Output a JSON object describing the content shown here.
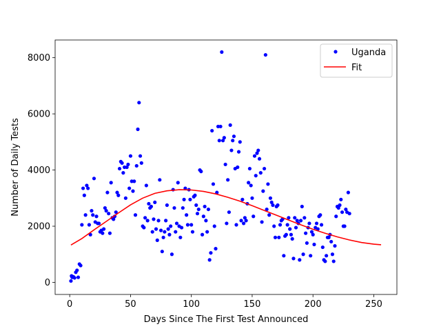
{
  "chart_data": {
    "type": "scatter",
    "title": "",
    "xlabel": "Days Since The First Test Announced",
    "ylabel": "Number of Daily Tests",
    "xlim": [
      -12,
      269
    ],
    "ylim": [
      -430,
      8630
    ],
    "x_ticks": [
      0,
      50,
      100,
      150,
      200,
      250
    ],
    "y_ticks": [
      0,
      2000,
      4000,
      6000,
      8000
    ],
    "x_tick_labels": [
      "0",
      "50",
      "100",
      "150",
      "200",
      "250"
    ],
    "y_tick_labels": [
      "0",
      "2000",
      "4000",
      "6000",
      "8000"
    ],
    "grid": false,
    "legend_position": "top-right",
    "series": [
      {
        "name": "Uganda",
        "kind": "scatter",
        "color": "#0000ff",
        "points": [
          [
            1,
            50
          ],
          [
            1.5,
            230
          ],
          [
            2,
            180
          ],
          [
            3,
            200
          ],
          [
            4,
            160
          ],
          [
            5,
            360
          ],
          [
            6,
            430
          ],
          [
            7,
            180
          ],
          [
            8,
            650
          ],
          [
            9,
            600
          ],
          [
            10,
            2050
          ],
          [
            11,
            3350
          ],
          [
            12,
            3100
          ],
          [
            13,
            2400
          ],
          [
            14,
            3450
          ],
          [
            15,
            3350
          ],
          [
            16,
            2050
          ],
          [
            17,
            1700
          ],
          [
            18,
            2550
          ],
          [
            19,
            2400
          ],
          [
            20,
            3700
          ],
          [
            21,
            2150
          ],
          [
            22,
            2350
          ],
          [
            23,
            2100
          ],
          [
            24,
            2100
          ],
          [
            25,
            1800
          ],
          [
            26,
            1850
          ],
          [
            27,
            1750
          ],
          [
            28,
            1900
          ],
          [
            29,
            2650
          ],
          [
            30,
            2550
          ],
          [
            31,
            3200
          ],
          [
            32,
            2450
          ],
          [
            33,
            1750
          ],
          [
            34,
            3550
          ],
          [
            35,
            2300
          ],
          [
            36,
            2250
          ],
          [
            37,
            2350
          ],
          [
            38,
            2500
          ],
          [
            39,
            3200
          ],
          [
            40,
            3100
          ],
          [
            41,
            4050
          ],
          [
            42,
            4300
          ],
          [
            43,
            4250
          ],
          [
            44,
            3900
          ],
          [
            45,
            4100
          ],
          [
            46,
            3000
          ],
          [
            47,
            4100
          ],
          [
            48,
            4200
          ],
          [
            49,
            3350
          ],
          [
            50,
            4500
          ],
          [
            51,
            3600
          ],
          [
            52,
            3250
          ],
          [
            53,
            3600
          ],
          [
            54,
            2400
          ],
          [
            55,
            4150
          ],
          [
            56,
            5450
          ],
          [
            57,
            6400
          ],
          [
            58,
            4500
          ],
          [
            59,
            4250
          ],
          [
            60,
            2000
          ],
          [
            61,
            1950
          ],
          [
            62,
            2300
          ],
          [
            63,
            3450
          ],
          [
            64,
            2200
          ],
          [
            65,
            2800
          ],
          [
            66,
            2650
          ],
          [
            67,
            2700
          ],
          [
            68,
            1800
          ],
          [
            69,
            2250
          ],
          [
            70,
            2850
          ],
          [
            71,
            1900
          ],
          [
            72,
            1500
          ],
          [
            73,
            2200
          ],
          [
            74,
            3650
          ],
          [
            75,
            1850
          ],
          [
            76,
            1100
          ],
          [
            77,
            1600
          ],
          [
            78,
            1800
          ],
          [
            79,
            2200
          ],
          [
            80,
            2750
          ],
          [
            81,
            1900
          ],
          [
            82,
            1700
          ],
          [
            83,
            2000
          ],
          [
            84,
            1000
          ],
          [
            85,
            3300
          ],
          [
            86,
            2650
          ],
          [
            87,
            1800
          ],
          [
            88,
            2100
          ],
          [
            89,
            3550
          ],
          [
            90,
            2000
          ],
          [
            91,
            1600
          ],
          [
            92,
            1950
          ],
          [
            93,
            2650
          ],
          [
            94,
            2950
          ],
          [
            95,
            3350
          ],
          [
            96,
            2400
          ],
          [
            97,
            2050
          ],
          [
            98,
            3300
          ],
          [
            99,
            2950
          ],
          [
            100,
            2050
          ],
          [
            101,
            1800
          ],
          [
            102,
            3050
          ],
          [
            103,
            3100
          ],
          [
            104,
            2750
          ],
          [
            105,
            2450
          ],
          [
            106,
            2600
          ],
          [
            107,
            4000
          ],
          [
            108,
            3950
          ],
          [
            109,
            1700
          ],
          [
            110,
            2350
          ],
          [
            111,
            2700
          ],
          [
            112,
            2200
          ],
          [
            113,
            1800
          ],
          [
            114,
            2600
          ],
          [
            115,
            800
          ],
          [
            116,
            1050
          ],
          [
            117,
            5400
          ],
          [
            118,
            3500
          ],
          [
            119,
            2000
          ],
          [
            120,
            1200
          ],
          [
            121,
            3200
          ],
          [
            122,
            5550
          ],
          [
            123,
            5050
          ],
          [
            124,
            5550
          ],
          [
            125,
            8200
          ],
          [
            126,
            5050
          ],
          [
            127,
            5150
          ],
          [
            128,
            4200
          ],
          [
            129,
            2100
          ],
          [
            130,
            3650
          ],
          [
            131,
            2500
          ],
          [
            132,
            5600
          ],
          [
            133,
            4700
          ],
          [
            134,
            5050
          ],
          [
            135,
            5200
          ],
          [
            136,
            4050
          ],
          [
            137,
            2050
          ],
          [
            138,
            4100
          ],
          [
            139,
            4650
          ],
          [
            140,
            5000
          ],
          [
            141,
            2200
          ],
          [
            142,
            2950
          ],
          [
            143,
            2100
          ],
          [
            144,
            2300
          ],
          [
            145,
            2200
          ],
          [
            146,
            2800
          ],
          [
            147,
            3550
          ],
          [
            148,
            4050
          ],
          [
            149,
            3450
          ],
          [
            150,
            3000
          ],
          [
            151,
            2350
          ],
          [
            152,
            4500
          ],
          [
            153,
            3800
          ],
          [
            154,
            4600
          ],
          [
            155,
            4700
          ],
          [
            156,
            4400
          ],
          [
            157,
            3900
          ],
          [
            158,
            2150
          ],
          [
            159,
            3250
          ],
          [
            160,
            4050
          ],
          [
            161,
            8100
          ],
          [
            162,
            2600
          ],
          [
            163,
            3500
          ],
          [
            164,
            2400
          ],
          [
            165,
            3000
          ],
          [
            166,
            2850
          ],
          [
            167,
            2750
          ],
          [
            168,
            2000
          ],
          [
            169,
            1600
          ],
          [
            170,
            2700
          ],
          [
            171,
            2750
          ],
          [
            172,
            1600
          ],
          [
            173,
            2050
          ],
          [
            174,
            2200
          ],
          [
            175,
            2250
          ],
          [
            176,
            950
          ],
          [
            177,
            1650
          ],
          [
            178,
            1700
          ],
          [
            179,
            2050
          ],
          [
            180,
            2300
          ],
          [
            181,
            1900
          ],
          [
            182,
            1700
          ],
          [
            183,
            1550
          ],
          [
            184,
            850
          ],
          [
            185,
            2300
          ],
          [
            186,
            1950
          ],
          [
            187,
            2200
          ],
          [
            188,
            2100
          ],
          [
            189,
            800
          ],
          [
            190,
            2200
          ],
          [
            191,
            2700
          ],
          [
            192,
            1000
          ],
          [
            193,
            2300
          ],
          [
            194,
            1750
          ],
          [
            195,
            1400
          ],
          [
            196,
            1950
          ],
          [
            197,
            2100
          ],
          [
            198,
            950
          ],
          [
            199,
            1800
          ],
          [
            200,
            1700
          ],
          [
            201,
            1350
          ],
          [
            202,
            1950
          ],
          [
            203,
            2100
          ],
          [
            204,
            1900
          ],
          [
            205,
            2350
          ],
          [
            206,
            2400
          ],
          [
            207,
            2050
          ],
          [
            208,
            1250
          ],
          [
            209,
            800
          ],
          [
            210,
            750
          ],
          [
            211,
            950
          ],
          [
            212,
            1600
          ],
          [
            213,
            1600
          ],
          [
            214,
            1700
          ],
          [
            215,
            1450
          ],
          [
            216,
            1000
          ],
          [
            217,
            750
          ],
          [
            218,
            1300
          ],
          [
            219,
            2350
          ],
          [
            220,
            2700
          ],
          [
            221,
            2650
          ],
          [
            222,
            2750
          ],
          [
            223,
            2950
          ],
          [
            224,
            2500
          ],
          [
            225,
            2000
          ],
          [
            226,
            2000
          ],
          [
            227,
            2600
          ],
          [
            228,
            2500
          ],
          [
            229,
            3200
          ],
          [
            230,
            2450
          ]
        ]
      },
      {
        "name": "Fit",
        "kind": "line",
        "color": "#ff0000",
        "points": [
          [
            1,
            1330
          ],
          [
            10,
            1560
          ],
          [
            20,
            1870
          ],
          [
            30,
            2170
          ],
          [
            40,
            2470
          ],
          [
            50,
            2760
          ],
          [
            60,
            3000
          ],
          [
            70,
            3170
          ],
          [
            80,
            3260
          ],
          [
            90,
            3300
          ],
          [
            100,
            3290
          ],
          [
            110,
            3240
          ],
          [
            120,
            3150
          ],
          [
            130,
            3030
          ],
          [
            140,
            2890
          ],
          [
            150,
            2730
          ],
          [
            160,
            2560
          ],
          [
            170,
            2390
          ],
          [
            180,
            2220
          ],
          [
            190,
            2050
          ],
          [
            200,
            1890
          ],
          [
            210,
            1750
          ],
          [
            220,
            1620
          ],
          [
            230,
            1510
          ],
          [
            240,
            1420
          ],
          [
            250,
            1360
          ],
          [
            256,
            1340
          ]
        ]
      }
    ]
  }
}
